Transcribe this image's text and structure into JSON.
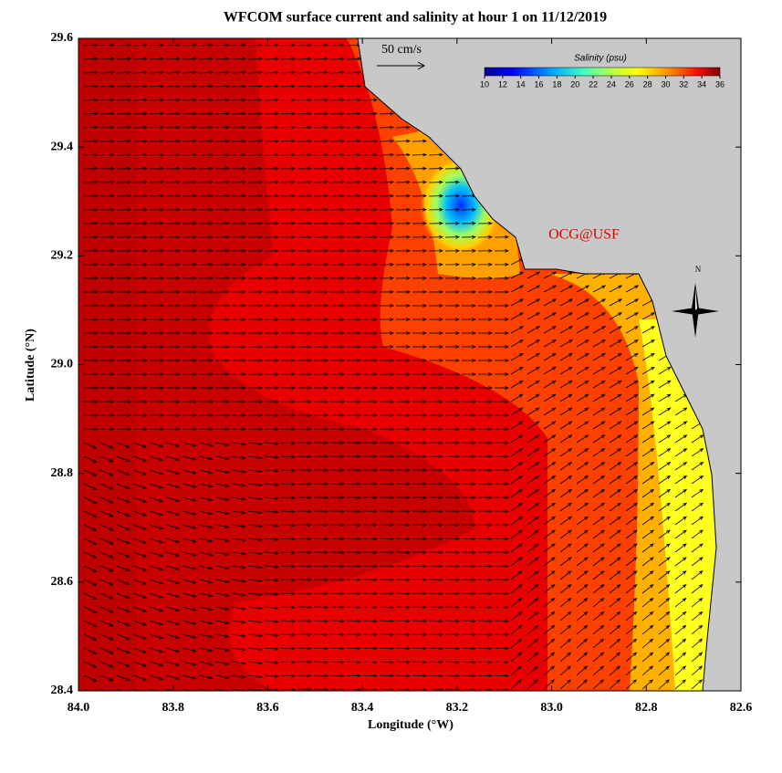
{
  "map": {
    "title": "WFCOM surface current and salinity at hour 1 on 11/12/2019",
    "xlabel": "Longitude (°W)",
    "ylabel": "Latitude (°N)",
    "xlim": [
      84.0,
      82.6
    ],
    "ylim": [
      28.4,
      29.6
    ],
    "xticks": [
      {
        "value": 84.0,
        "label": "84.0"
      },
      83.8,
      83.6,
      83.4,
      83.2,
      {
        "value": 83.0,
        "label": "83.0"
      },
      82.8,
      82.6
    ],
    "yticks": [
      28.4,
      28.6,
      28.8,
      {
        "value": 29.0,
        "label": "29.0"
      },
      29.2,
      29.4,
      29.6
    ],
    "scale_label": "50 cm/s",
    "watermark": "OCG@USF",
    "north_label": "N",
    "colorbar": {
      "title": "Salinity (psu)",
      "lim": [
        10,
        36
      ],
      "ticks": [
        10,
        12,
        14,
        16,
        18,
        20,
        22,
        24,
        26,
        28,
        30,
        32,
        34,
        36
      ]
    }
  }
}
